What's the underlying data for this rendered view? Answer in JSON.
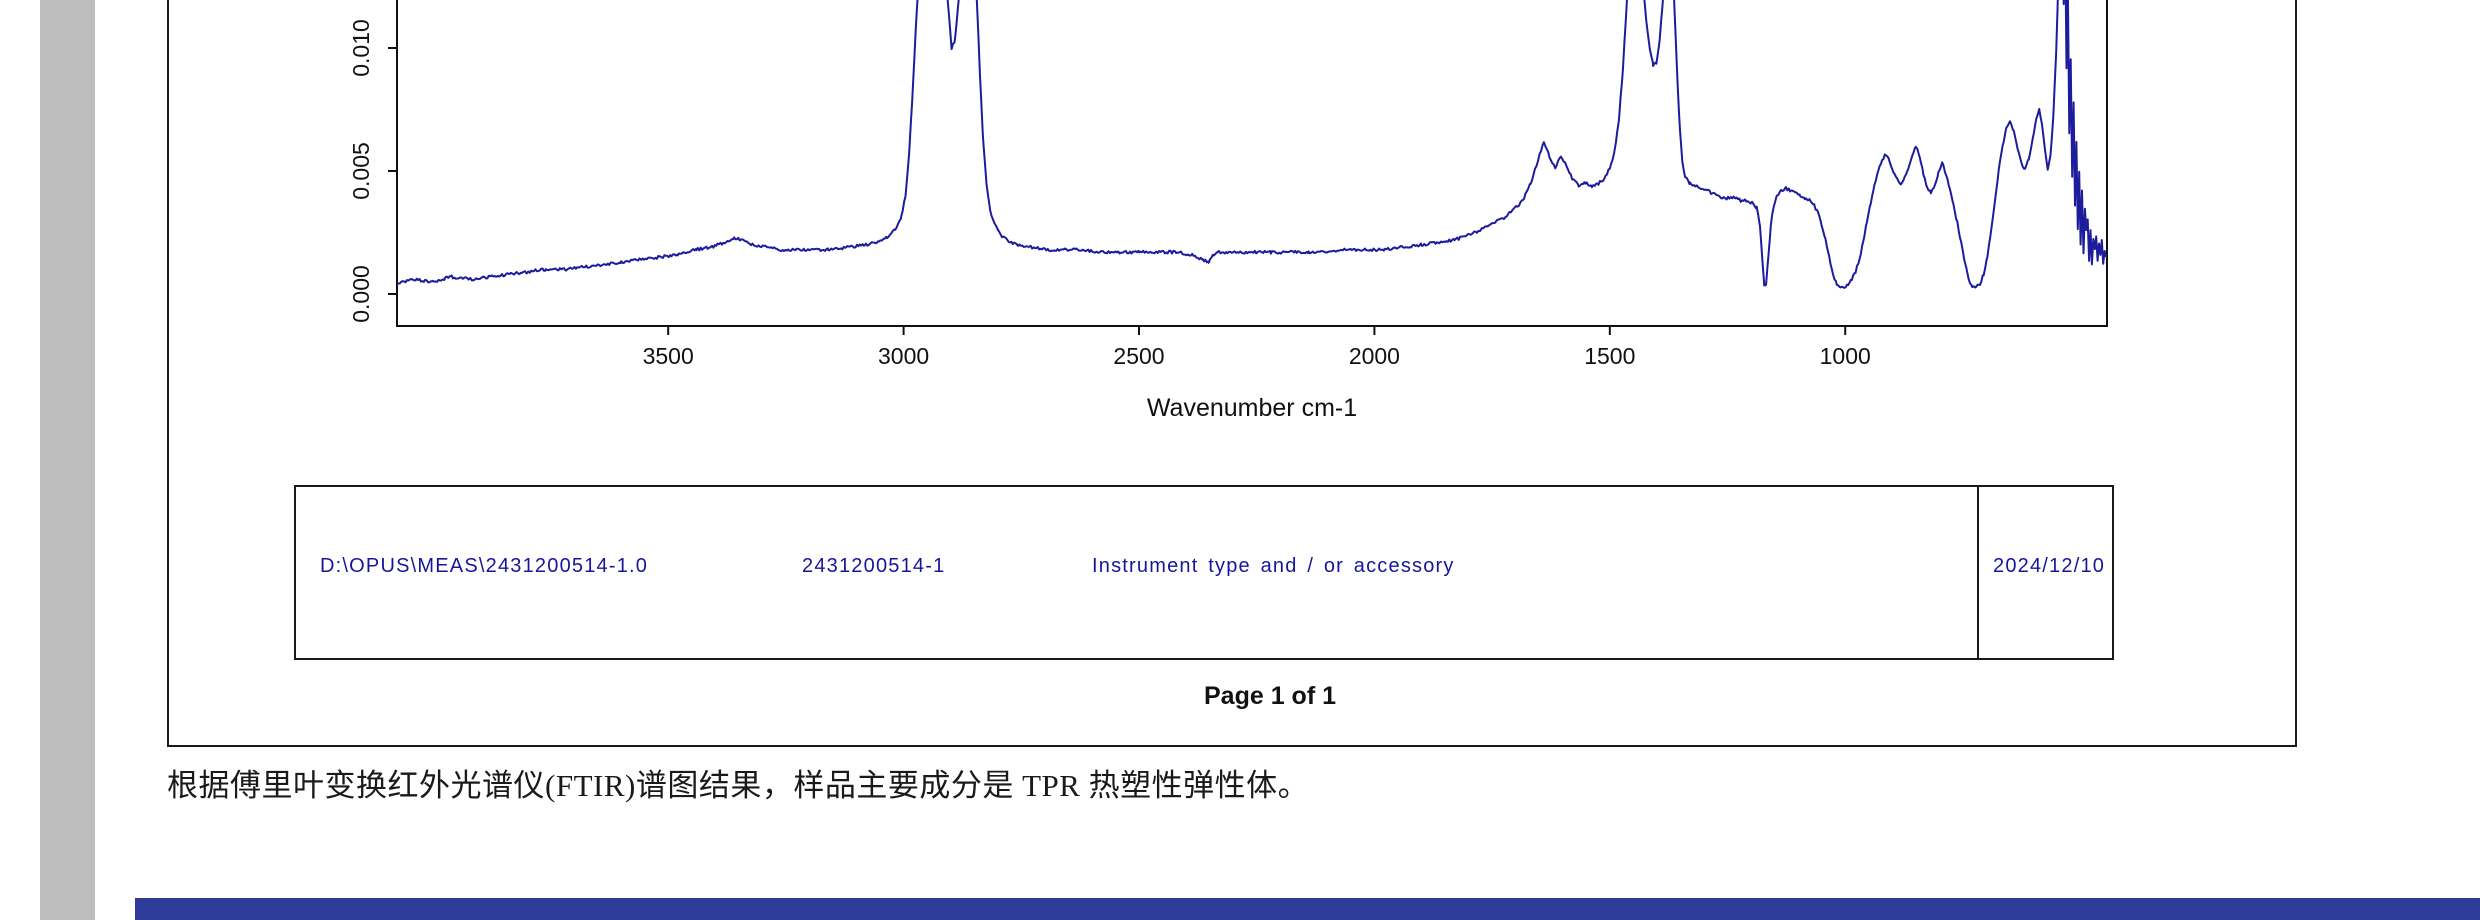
{
  "colors": {
    "footer_bar": "#2e3b99",
    "viewer_band": "#bdbdbd",
    "frame": "#1a1a1a",
    "table_text": "#16169c",
    "axis": "#111111"
  },
  "report": {
    "table": {
      "file_path": "D:\\OPUS\\MEAS\\2431200514-1.0",
      "sample_name": "2431200514-1",
      "instrument": "Instrument type and / or accessory",
      "date": "2024/12/10"
    },
    "page_label": "Page 1 of 1"
  },
  "conclusion": "根据傅里叶变换红外光谱仪(FTIR)谱图结果，样品主要成分是 TPR 热塑性弹性体。",
  "chart_data": {
    "type": "line",
    "title": "",
    "xlabel": "Wavenumber cm-1",
    "ylabel": "",
    "x_ticks": [
      3500,
      3000,
      2500,
      2000,
      1500,
      1000
    ],
    "y_tick_values": [
      0,
      0.005,
      0.01
    ],
    "y_tick_labels": [
      "0.000",
      "0.005",
      "0.010"
    ],
    "xlim": [
      4076,
      444
    ],
    "ylim_visible": [
      0,
      0.012
    ],
    "x_axis_reversed": true,
    "grid": false,
    "legend": false,
    "line_color": "#1c1c9c",
    "noise": 6e-05,
    "points": [
      [
        4076,
        0.0004
      ],
      [
        4040,
        0.0006
      ],
      [
        4000,
        0.0005
      ],
      [
        3960,
        0.0007
      ],
      [
        3920,
        0.0006
      ],
      [
        3880,
        0.0007
      ],
      [
        3840,
        0.0008
      ],
      [
        3800,
        0.0009
      ],
      [
        3760,
        0.001
      ],
      [
        3720,
        0.001
      ],
      [
        3680,
        0.0011
      ],
      [
        3640,
        0.0012
      ],
      [
        3600,
        0.0013
      ],
      [
        3560,
        0.0014
      ],
      [
        3520,
        0.0015
      ],
      [
        3480,
        0.0016
      ],
      [
        3440,
        0.0018
      ],
      [
        3410,
        0.0019
      ],
      [
        3380,
        0.0021
      ],
      [
        3360,
        0.0023
      ],
      [
        3345,
        0.0022
      ],
      [
        3320,
        0.002
      ],
      [
        3290,
        0.0019
      ],
      [
        3260,
        0.0018
      ],
      [
        3230,
        0.0018
      ],
      [
        3200,
        0.0018
      ],
      [
        3160,
        0.0018
      ],
      [
        3120,
        0.0019
      ],
      [
        3080,
        0.002
      ],
      [
        3055,
        0.0021
      ],
      [
        3035,
        0.0023
      ],
      [
        3018,
        0.0026
      ],
      [
        3005,
        0.0031
      ],
      [
        2996,
        0.004
      ],
      [
        2988,
        0.0058
      ],
      [
        2980,
        0.0085
      ],
      [
        2972,
        0.0115
      ],
      [
        2964,
        0.014
      ],
      [
        2955,
        0.0152
      ],
      [
        2945,
        0.015
      ],
      [
        2935,
        0.0152
      ],
      [
        2925,
        0.015
      ],
      [
        2915,
        0.0138
      ],
      [
        2906,
        0.0118
      ],
      [
        2898,
        0.01
      ],
      [
        2891,
        0.0103
      ],
      [
        2883,
        0.012
      ],
      [
        2875,
        0.014
      ],
      [
        2867,
        0.0152
      ],
      [
        2859,
        0.015
      ],
      [
        2851,
        0.014
      ],
      [
        2844,
        0.0118
      ],
      [
        2838,
        0.009
      ],
      [
        2831,
        0.0062
      ],
      [
        2824,
        0.0045
      ],
      [
        2816,
        0.0034
      ],
      [
        2806,
        0.0028
      ],
      [
        2794,
        0.0024
      ],
      [
        2780,
        0.0022
      ],
      [
        2760,
        0.002
      ],
      [
        2730,
        0.0019
      ],
      [
        2700,
        0.0018
      ],
      [
        2660,
        0.0018
      ],
      [
        2620,
        0.0018
      ],
      [
        2580,
        0.0017
      ],
      [
        2540,
        0.0017
      ],
      [
        2500,
        0.0017
      ],
      [
        2460,
        0.0017
      ],
      [
        2420,
        0.0017
      ],
      [
        2390,
        0.0016
      ],
      [
        2365,
        0.0014
      ],
      [
        2352,
        0.0013
      ],
      [
        2342,
        0.0016
      ],
      [
        2330,
        0.0017
      ],
      [
        2300,
        0.0017
      ],
      [
        2260,
        0.0017
      ],
      [
        2220,
        0.0017
      ],
      [
        2180,
        0.0017
      ],
      [
        2140,
        0.0017
      ],
      [
        2100,
        0.0017
      ],
      [
        2060,
        0.0018
      ],
      [
        2020,
        0.0018
      ],
      [
        1980,
        0.0018
      ],
      [
        1940,
        0.0019
      ],
      [
        1900,
        0.002
      ],
      [
        1865,
        0.0021
      ],
      [
        1830,
        0.0022
      ],
      [
        1800,
        0.0024
      ],
      [
        1775,
        0.0026
      ],
      [
        1750,
        0.0029
      ],
      [
        1725,
        0.0031
      ],
      [
        1705,
        0.0034
      ],
      [
        1685,
        0.0038
      ],
      [
        1668,
        0.0045
      ],
      [
        1652,
        0.0055
      ],
      [
        1640,
        0.0062
      ],
      [
        1628,
        0.0056
      ],
      [
        1616,
        0.0051
      ],
      [
        1604,
        0.0056
      ],
      [
        1592,
        0.0052
      ],
      [
        1580,
        0.0047
      ],
      [
        1566,
        0.0044
      ],
      [
        1552,
        0.0045
      ],
      [
        1538,
        0.0044
      ],
      [
        1524,
        0.0045
      ],
      [
        1512,
        0.0047
      ],
      [
        1500,
        0.0051
      ],
      [
        1490,
        0.0058
      ],
      [
        1480,
        0.0072
      ],
      [
        1472,
        0.0092
      ],
      [
        1464,
        0.0118
      ],
      [
        1457,
        0.0145
      ],
      [
        1450,
        0.0155
      ],
      [
        1443,
        0.015
      ],
      [
        1436,
        0.0138
      ],
      [
        1429,
        0.0124
      ],
      [
        1422,
        0.011
      ],
      [
        1415,
        0.0099
      ],
      [
        1408,
        0.0093
      ],
      [
        1401,
        0.0094
      ],
      [
        1394,
        0.0103
      ],
      [
        1387,
        0.012
      ],
      [
        1381,
        0.014
      ],
      [
        1376,
        0.0153
      ],
      [
        1371,
        0.015
      ],
      [
        1366,
        0.0132
      ],
      [
        1361,
        0.0108
      ],
      [
        1356,
        0.0085
      ],
      [
        1351,
        0.0066
      ],
      [
        1346,
        0.0054
      ],
      [
        1340,
        0.0048
      ],
      [
        1330,
        0.0045
      ],
      [
        1318,
        0.0044
      ],
      [
        1306,
        0.0043
      ],
      [
        1294,
        0.0042
      ],
      [
        1282,
        0.0041
      ],
      [
        1270,
        0.004
      ],
      [
        1258,
        0.0039
      ],
      [
        1246,
        0.0039
      ],
      [
        1234,
        0.0039
      ],
      [
        1222,
        0.0038
      ],
      [
        1210,
        0.0038
      ],
      [
        1198,
        0.0037
      ],
      [
        1188,
        0.0035
      ],
      [
        1181,
        0.0028
      ],
      [
        1176,
        0.0014
      ],
      [
        1172,
        0.0003
      ],
      [
        1168,
        0.0004
      ],
      [
        1163,
        0.0016
      ],
      [
        1158,
        0.0028
      ],
      [
        1152,
        0.0036
      ],
      [
        1145,
        0.004
      ],
      [
        1136,
        0.0042
      ],
      [
        1126,
        0.0043
      ],
      [
        1116,
        0.0042
      ],
      [
        1106,
        0.0041
      ],
      [
        1096,
        0.004
      ],
      [
        1086,
        0.0039
      ],
      [
        1076,
        0.0038
      ],
      [
        1066,
        0.0036
      ],
      [
        1058,
        0.0033
      ],
      [
        1050,
        0.0028
      ],
      [
        1042,
        0.0022
      ],
      [
        1034,
        0.0015
      ],
      [
        1026,
        0.0008
      ],
      [
        1018,
        0.0004
      ],
      [
        1010,
        0.0003
      ],
      [
        1002,
        0.0003
      ],
      [
        994,
        0.0004
      ],
      [
        986,
        0.0006
      ],
      [
        978,
        0.0009
      ],
      [
        970,
        0.0014
      ],
      [
        962,
        0.0021
      ],
      [
        954,
        0.0029
      ],
      [
        946,
        0.0037
      ],
      [
        938,
        0.0044
      ],
      [
        930,
        0.005
      ],
      [
        922,
        0.0054
      ],
      [
        914,
        0.0057
      ],
      [
        906,
        0.0054
      ],
      [
        898,
        0.005
      ],
      [
        890,
        0.0047
      ],
      [
        882,
        0.0045
      ],
      [
        874,
        0.0047
      ],
      [
        866,
        0.0051
      ],
      [
        858,
        0.0056
      ],
      [
        850,
        0.006
      ],
      [
        842,
        0.0056
      ],
      [
        834,
        0.0049
      ],
      [
        826,
        0.0043
      ],
      [
        818,
        0.0041
      ],
      [
        810,
        0.0044
      ],
      [
        802,
        0.0049
      ],
      [
        794,
        0.0053
      ],
      [
        786,
        0.0049
      ],
      [
        778,
        0.0043
      ],
      [
        770,
        0.0036
      ],
      [
        762,
        0.0029
      ],
      [
        754,
        0.0021
      ],
      [
        746,
        0.0013
      ],
      [
        738,
        0.0006
      ],
      [
        730,
        0.0003
      ],
      [
        722,
        0.0003
      ],
      [
        714,
        0.0004
      ],
      [
        706,
        0.0008
      ],
      [
        698,
        0.0015
      ],
      [
        690,
        0.0026
      ],
      [
        682,
        0.0038
      ],
      [
        674,
        0.005
      ],
      [
        666,
        0.006
      ],
      [
        658,
        0.0067
      ],
      [
        650,
        0.007
      ],
      [
        642,
        0.0066
      ],
      [
        634,
        0.0059
      ],
      [
        626,
        0.0053
      ],
      [
        618,
        0.0051
      ],
      [
        610,
        0.0055
      ],
      [
        602,
        0.0063
      ],
      [
        594,
        0.0071
      ],
      [
        588,
        0.0075
      ],
      [
        582,
        0.0069
      ],
      [
        576,
        0.0059
      ],
      [
        570,
        0.0051
      ],
      [
        564,
        0.0056
      ],
      [
        558,
        0.0072
      ],
      [
        552,
        0.0098
      ],
      [
        547,
        0.013
      ],
      [
        543,
        0.0155
      ],
      [
        539,
        0.015
      ],
      [
        536,
        0.0118
      ],
      [
        533,
        0.0148
      ],
      [
        530,
        0.0092
      ],
      [
        527,
        0.0122
      ],
      [
        524,
        0.0065
      ],
      [
        521,
        0.0095
      ],
      [
        518,
        0.0048
      ],
      [
        515,
        0.0078
      ],
      [
        512,
        0.0036
      ],
      [
        509,
        0.0062
      ],
      [
        506,
        0.0026
      ],
      [
        503,
        0.005
      ],
      [
        500,
        0.002
      ],
      [
        497,
        0.0042
      ],
      [
        494,
        0.0016
      ],
      [
        491,
        0.0035
      ],
      [
        488,
        0.0026
      ],
      [
        485,
        0.003
      ],
      [
        482,
        0.0014
      ],
      [
        479,
        0.0026
      ],
      [
        476,
        0.0012
      ],
      [
        473,
        0.0022
      ],
      [
        470,
        0.0018
      ],
      [
        467,
        0.0024
      ],
      [
        464,
        0.0013
      ],
      [
        461,
        0.002
      ],
      [
        458,
        0.0016
      ],
      [
        455,
        0.0022
      ],
      [
        452,
        0.0012
      ],
      [
        449,
        0.0018
      ],
      [
        446,
        0.0015
      ]
    ]
  }
}
